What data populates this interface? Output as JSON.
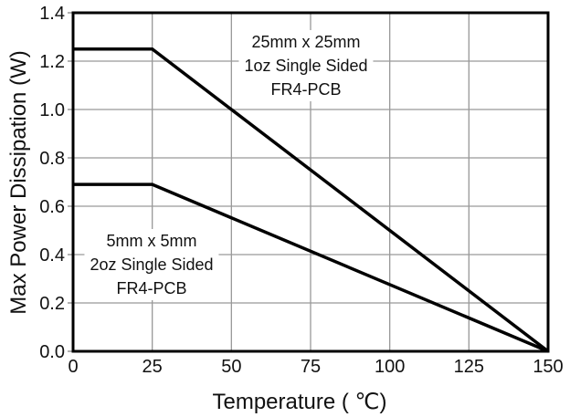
{
  "chart_data": {
    "type": "line",
    "title": "",
    "xlabel": "Temperature ( ℃)",
    "ylabel": "Max Power Dissipation (W)",
    "xlim": [
      0,
      150
    ],
    "ylim": [
      0,
      1.4
    ],
    "x_ticks": [
      0,
      25,
      50,
      75,
      100,
      125,
      150
    ],
    "x_tick_labels": [
      "0",
      "25",
      "50",
      "75",
      "100",
      "125",
      "150"
    ],
    "y_ticks": [
      0.0,
      0.2,
      0.4,
      0.6,
      0.8,
      1.0,
      1.2,
      1.4
    ],
    "y_tick_labels": [
      "0.0",
      "0.2",
      "0.4",
      "0.6",
      "0.8",
      "1.0",
      "1.2",
      "1.4"
    ],
    "grid": true,
    "legend_position": "none",
    "grid_color": "#999999",
    "border_color": "#000000",
    "line_color": "#000000",
    "line_width": 3.5,
    "series": [
      {
        "name": "25mm x 25mm 1oz Single Sided FR4-PCB",
        "points": [
          [
            0,
            1.25
          ],
          [
            25,
            1.25
          ],
          [
            150,
            0
          ]
        ],
        "color": "#000000",
        "annotation": {
          "lines": [
            "25mm x 25mm",
            "1oz Single Sided",
            "FR4-PCB"
          ]
        }
      },
      {
        "name": "5mm x 5mm 2oz Single Sided FR4-PCB",
        "points": [
          [
            0,
            0.69
          ],
          [
            25,
            0.69
          ],
          [
            150,
            0
          ]
        ],
        "color": "#000000",
        "annotation": {
          "lines": [
            "5mm x 5mm",
            "2oz Single Sided",
            "FR4-PCB"
          ]
        }
      }
    ]
  }
}
